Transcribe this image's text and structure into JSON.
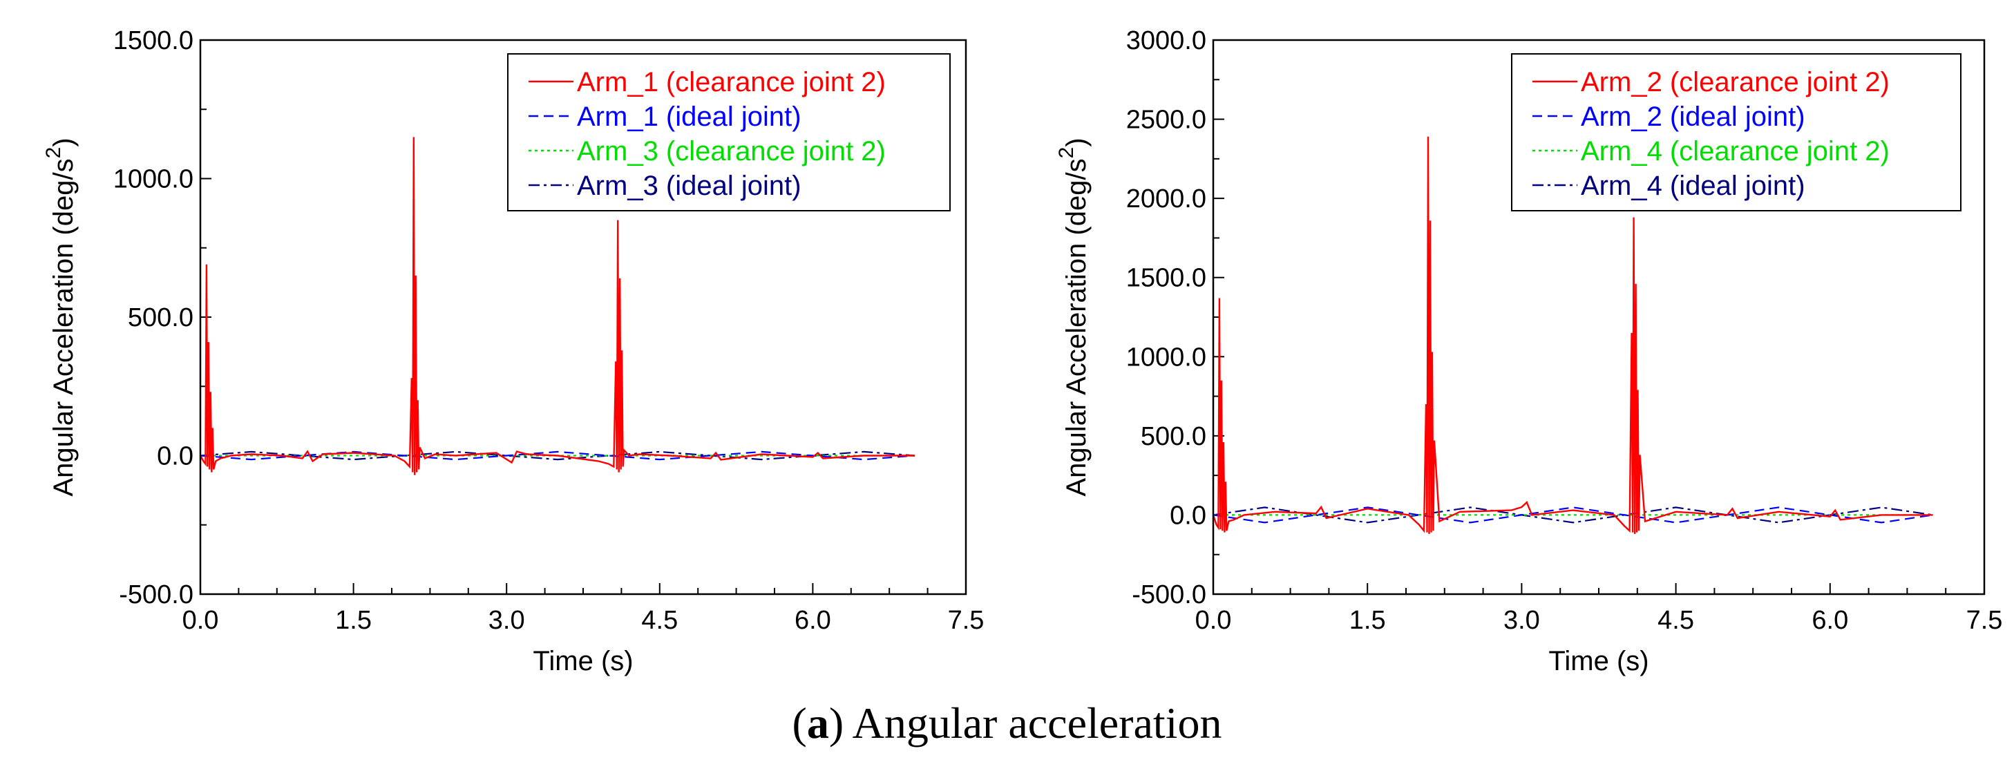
{
  "caption": {
    "letter": "a",
    "text": "Angular acceleration"
  },
  "colors": {
    "clearance": "#ff0000",
    "ideal": "#0000ff",
    "clearance_other": "#00dd00",
    "ideal_other": "#000080",
    "axis": "#000000"
  },
  "chart_data": [
    {
      "type": "line",
      "xlabel": "Time (s)",
      "ylabel": "Angular Acceleration (deg/s²)",
      "ylabel_main": "Angular Acceleration (deg/s",
      "ylabel_sup": "2",
      "ylabel_close": ")",
      "xlim": [
        0,
        7.5
      ],
      "ylim": [
        -500,
        1500
      ],
      "xticks": [
        0,
        1.5,
        3,
        4.5,
        6,
        7.5
      ],
      "xtick_labels": [
        "0.0",
        "1.5",
        "3.0",
        "4.5",
        "6.0",
        "7.5"
      ],
      "yticks": [
        -500,
        0,
        500,
        1000,
        1500
      ],
      "ytick_labels": [
        "-500.0",
        "0.0",
        "500.0",
        "1000.0",
        "1500.0"
      ],
      "legend_position": "top-right",
      "series": [
        {
          "name": "Arm_1 (clearance joint 2)",
          "style": "solid",
          "color": "#ff0000",
          "x": [
            0.0,
            0.03,
            0.05,
            0.06,
            0.07,
            0.08,
            0.09,
            0.1,
            0.11,
            0.12,
            0.13,
            0.15,
            0.2,
            0.3,
            0.5,
            0.8,
            1.0,
            1.05,
            1.1,
            1.2,
            1.5,
            1.9,
            2.0,
            2.05,
            2.07,
            2.08,
            2.09,
            2.1,
            2.11,
            2.12,
            2.13,
            2.14,
            2.15,
            2.2,
            2.3,
            2.5,
            2.9,
            3.05,
            3.1,
            3.2,
            3.5,
            3.9,
            4.0,
            4.05,
            4.07,
            4.08,
            4.09,
            4.1,
            4.11,
            4.12,
            4.13,
            4.14,
            4.15,
            4.2,
            4.3,
            4.6,
            5.0,
            5.05,
            5.1,
            5.5,
            6.0,
            6.05,
            6.1,
            6.5,
            7.0
          ],
          "y": [
            0,
            -20,
            -30,
            690,
            -40,
            410,
            -50,
            230,
            -60,
            100,
            -50,
            -20,
            -10,
            0,
            5,
            0,
            -10,
            15,
            -20,
            5,
            10,
            0,
            -20,
            -40,
            280,
            -60,
            1150,
            -70,
            650,
            -60,
            200,
            -50,
            30,
            -10,
            5,
            0,
            10,
            -25,
            15,
            5,
            0,
            -20,
            -30,
            -40,
            340,
            -50,
            850,
            -60,
            640,
            -50,
            380,
            -40,
            20,
            0,
            5,
            0,
            -10,
            10,
            -15,
            5,
            -5,
            10,
            -10,
            0,
            0
          ]
        },
        {
          "name": "Arm_1 (ideal joint)",
          "style": "dashed",
          "color": "#0000ff",
          "x": [
            0,
            0.5,
            1.0,
            1.5,
            2.0,
            2.5,
            3.0,
            3.5,
            4.0,
            4.5,
            5.0,
            5.5,
            6.0,
            6.5,
            7.0
          ],
          "y": [
            0,
            -14,
            0,
            14,
            0,
            -14,
            0,
            14,
            0,
            -14,
            0,
            14,
            0,
            -14,
            0
          ]
        },
        {
          "name": "Arm_3 (clearance joint 2)",
          "style": "dotted",
          "color": "#00dd00",
          "x": [
            0,
            7.0
          ],
          "y": [
            0,
            0
          ]
        },
        {
          "name": "Arm_3 (ideal joint)",
          "style": "dashdot",
          "color": "#000080",
          "x": [
            0,
            0.5,
            1.0,
            1.5,
            2.0,
            2.5,
            3.0,
            3.5,
            4.0,
            4.5,
            5.0,
            5.5,
            6.0,
            6.5,
            7.0
          ],
          "y": [
            0,
            14,
            0,
            -14,
            0,
            14,
            0,
            -14,
            0,
            14,
            0,
            -14,
            0,
            14,
            0
          ]
        }
      ]
    },
    {
      "type": "line",
      "xlabel": "Time (s)",
      "ylabel": "Angular Acceleration (deg/s²)",
      "ylabel_main": "Angular Acceleration (deg/s",
      "ylabel_sup": "2",
      "ylabel_close": ")",
      "xlim": [
        0,
        7.5
      ],
      "ylim": [
        -500,
        3000
      ],
      "xticks": [
        0,
        1.5,
        3,
        4.5,
        6,
        7.5
      ],
      "xtick_labels": [
        "0.0",
        "1.5",
        "3.0",
        "4.5",
        "6.0",
        "7.5"
      ],
      "yticks": [
        -500,
        0,
        500,
        1000,
        1500,
        2000,
        2500,
        3000
      ],
      "ytick_labels": [
        "-500.0",
        "0.0",
        "500.0",
        "1000.0",
        "1500.0",
        "2000.0",
        "2500.0",
        "3000.0"
      ],
      "legend_position": "top-right",
      "series": [
        {
          "name": "Arm_2 (clearance joint 2)",
          "style": "solid",
          "color": "#ff0000",
          "x": [
            0.0,
            0.03,
            0.05,
            0.06,
            0.07,
            0.08,
            0.09,
            0.1,
            0.11,
            0.12,
            0.13,
            0.15,
            0.2,
            0.3,
            0.6,
            1.0,
            1.05,
            1.1,
            1.5,
            1.9,
            2.0,
            2.05,
            2.07,
            2.08,
            2.09,
            2.1,
            2.11,
            2.12,
            2.13,
            2.14,
            2.15,
            2.2,
            2.4,
            2.9,
            3.0,
            3.05,
            3.1,
            3.5,
            3.9,
            4.0,
            4.05,
            4.07,
            4.08,
            4.09,
            4.1,
            4.11,
            4.12,
            4.13,
            4.14,
            4.15,
            4.2,
            4.5,
            5.0,
            5.05,
            5.1,
            5.5,
            6.0,
            6.05,
            6.1,
            6.5,
            7.0
          ],
          "y": [
            0,
            -60,
            -80,
            1370,
            -90,
            850,
            -100,
            460,
            -110,
            210,
            -100,
            -40,
            -30,
            0,
            20,
            10,
            50,
            -20,
            40,
            0,
            -60,
            -100,
            700,
            -110,
            2390,
            -120,
            1860,
            -110,
            1030,
            -100,
            470,
            -40,
            20,
            30,
            50,
            80,
            0,
            30,
            0,
            -70,
            -100,
            1150,
            -110,
            1880,
            -120,
            1460,
            -110,
            790,
            -100,
            380,
            -40,
            20,
            0,
            40,
            -20,
            20,
            -10,
            30,
            -30,
            0,
            0
          ]
        },
        {
          "name": "Arm_2 (ideal joint)",
          "style": "dashed",
          "color": "#0000ff",
          "x": [
            0,
            0.5,
            1.0,
            1.5,
            2.0,
            2.5,
            3.0,
            3.5,
            4.0,
            4.5,
            5.0,
            5.5,
            6.0,
            6.5,
            7.0
          ],
          "y": [
            0,
            -48,
            0,
            48,
            0,
            -48,
            0,
            48,
            0,
            -48,
            0,
            48,
            0,
            -48,
            0
          ]
        },
        {
          "name": "Arm_4 (clearance joint 2)",
          "style": "dotted",
          "color": "#00dd00",
          "x": [
            0,
            7.0
          ],
          "y": [
            0,
            0
          ]
        },
        {
          "name": "Arm_4 (ideal joint)",
          "style": "dashdot",
          "color": "#000080",
          "x": [
            0,
            0.5,
            1.0,
            1.5,
            2.0,
            2.5,
            3.0,
            3.5,
            4.0,
            4.5,
            5.0,
            5.5,
            6.0,
            6.5,
            7.0
          ],
          "y": [
            0,
            48,
            0,
            -48,
            0,
            48,
            0,
            -48,
            0,
            48,
            0,
            -48,
            0,
            48,
            0
          ]
        }
      ]
    }
  ]
}
